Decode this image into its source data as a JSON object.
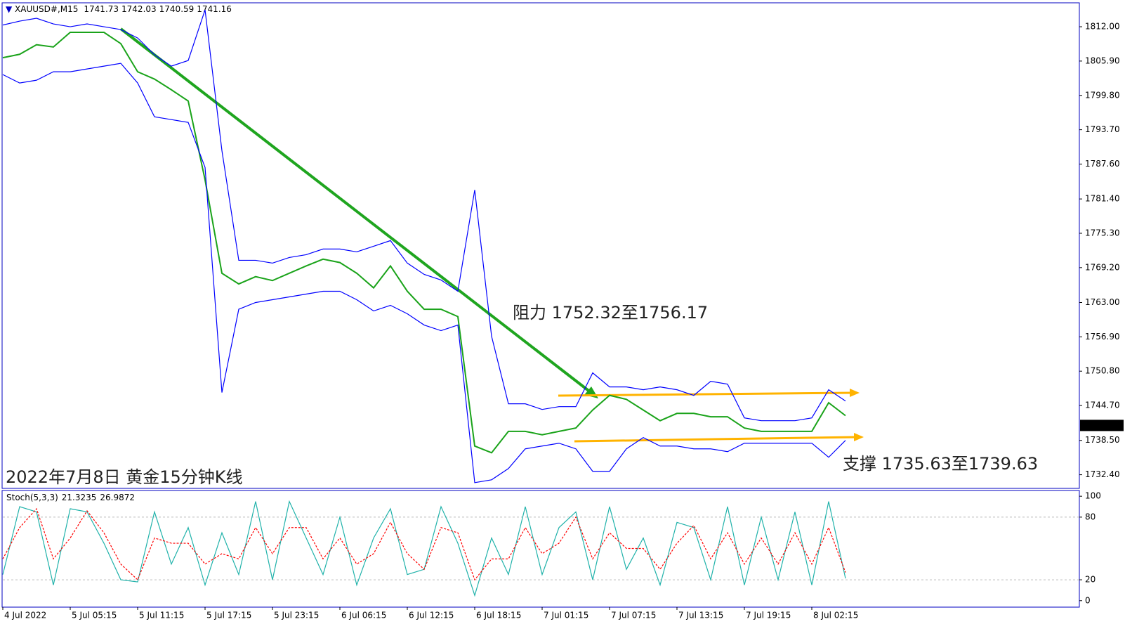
{
  "chart_data": [
    {
      "type": "line",
      "title": "XAUUSD#,M15",
      "last_ohlc": {
        "open": 1741.73,
        "high": 1742.03,
        "low": 1740.59,
        "close": 1741.16
      },
      "subtitle": "2022年7月8日 黄金15分钟K线",
      "annotations": [
        "阻力 1752.32至1756.17",
        "支撑 1735.63至1739.63"
      ],
      "categories": [
        "4 Jul 2022",
        null,
        null,
        null,
        "5 Jul 05:15",
        null,
        null,
        null,
        "5 Jul 11:15",
        null,
        null,
        null,
        "5 Jul 17:15",
        null,
        null,
        null,
        "5 Jul 23:15",
        null,
        null,
        null,
        "6 Jul 06:15",
        null,
        null,
        null,
        "6 Jul 12:15",
        null,
        null,
        null,
        "6 Jul 18:15",
        null,
        null,
        null,
        "7 Jul 01:15",
        null,
        null,
        null,
        "7 Jul 07:15",
        null,
        null,
        null,
        "7 Jul 13:15",
        null,
        null,
        null,
        "7 Jul 19:15",
        null,
        null,
        null,
        "8 Jul 02:15",
        null,
        null
      ],
      "series": [
        {
          "color": "#1aa31a",
          "values": [
            1806.5,
            1807.1,
            1808.8,
            1808.4,
            1811.0,
            1811.0,
            1811.0,
            1809.0,
            1804.0,
            1802.7,
            1800.8,
            1798.8,
            1784.8,
            1768.2,
            1766.3,
            1767.6,
            1766.9,
            1768.2,
            1769.5,
            1770.7,
            1770.1,
            1768.2,
            1765.6,
            1769.5,
            1765.0,
            1761.8,
            1761.8,
            1760.5,
            1737.5,
            1736.3,
            1740.1,
            1740.1,
            1739.5,
            1740.1,
            1740.7,
            1743.9,
            1746.5,
            1745.8,
            1743.9,
            1742.0,
            1743.3,
            1743.3,
            1742.7,
            1742.7,
            1740.7,
            1740.1,
            1740.1,
            1740.1,
            1740.1,
            1745.2,
            1742.9
          ]
        },
        {
          "color": "#0000ff",
          "values": [
            1812.3,
            1813,
            1813.5,
            1812.5,
            1812,
            1812.5,
            1812,
            1811.5,
            1810,
            1807,
            1805,
            1806,
            1815,
            1790,
            1770.5,
            1770.5,
            1770,
            1771,
            1771.5,
            1772.5,
            1772.5,
            1772,
            1773,
            1774,
            1770,
            1768,
            1767,
            1765,
            1783,
            1757,
            1745,
            1745,
            1744,
            1744.5,
            1744.5,
            1750.5,
            1748,
            1748,
            1747.5,
            1748,
            1747.5,
            1746.5,
            1749,
            1748.5,
            1742.5,
            1742,
            1742,
            1742,
            1742.5,
            1747.5,
            1745.5
          ]
        },
        {
          "color": "#0000ff",
          "values": [
            1803.5,
            1802,
            1802.5,
            1804,
            1804,
            1804.5,
            1805,
            1805.5,
            1802,
            1796,
            1795.5,
            1795,
            1787,
            1747,
            1761.8,
            1763,
            1763.5,
            1764,
            1764.5,
            1765,
            1765,
            1763.5,
            1761.5,
            1762.5,
            1761,
            1759,
            1758,
            1759,
            1731,
            1731.5,
            1733.5,
            1737,
            1737.5,
            1738,
            1737,
            1733,
            1733,
            1737,
            1739,
            1737.5,
            1737.5,
            1737,
            1737,
            1736.5,
            1738,
            1738,
            1738,
            1738,
            1738,
            1735.5,
            1738.5
          ]
        }
      ],
      "ylim": [
        1730.1,
        1816.0
      ],
      "yticks": [
        {
          "value": 1812.0,
          "label": "1812.00"
        },
        {
          "value": 1805.9,
          "label": "1805.90"
        },
        {
          "value": 1799.8,
          "label": "1799.80"
        },
        {
          "value": 1793.7,
          "label": "1793.70"
        },
        {
          "value": 1787.6,
          "label": "1787.60"
        },
        {
          "value": 1781.4,
          "label": "1781.40"
        },
        {
          "value": 1775.3,
          "label": "1775.30"
        },
        {
          "value": 1769.2,
          "label": "1769.20"
        },
        {
          "value": 1763.0,
          "label": "1763.00"
        },
        {
          "value": 1756.9,
          "label": "1756.90"
        },
        {
          "value": 1750.8,
          "label": "1750.80"
        },
        {
          "value": 1744.7,
          "label": "1744.70"
        },
        {
          "value": 1738.5,
          "label": "1738.50"
        },
        {
          "value": 1732.4,
          "label": "1732.40"
        }
      ]
    },
    {
      "type": "line",
      "title": "Stoch(5,3,3)",
      "series": [
        {
          "color": "#20b2aa",
          "values": [
            25,
            90,
            85,
            15,
            88,
            85,
            55,
            20,
            18,
            85,
            35,
            70,
            15,
            65,
            25,
            95,
            20,
            95,
            60,
            25,
            80,
            15,
            60,
            88,
            25,
            30,
            90,
            55,
            5,
            60,
            25,
            90,
            25,
            70,
            85,
            20,
            90,
            30,
            60,
            15,
            75,
            70,
            20,
            90,
            15,
            80,
            20,
            85,
            15,
            95,
            21.3235
          ]
        },
        {
          "color": "#ff0000",
          "dashed": true,
          "values": [
            40,
            70,
            88,
            40,
            60,
            86,
            65,
            35,
            20,
            60,
            55,
            55,
            35,
            45,
            40,
            70,
            45,
            70,
            70,
            40,
            60,
            35,
            45,
            75,
            45,
            30,
            70,
            65,
            20,
            40,
            40,
            70,
            45,
            55,
            80,
            40,
            65,
            50,
            50,
            30,
            55,
            72,
            40,
            65,
            35,
            60,
            35,
            65,
            35,
            70,
            26.9872
          ]
        }
      ],
      "ylim": [
        -6.2,
        105.5
      ],
      "yticks": [
        100,
        80,
        20,
        0
      ],
      "levels": [
        80,
        20
      ]
    }
  ]
}
